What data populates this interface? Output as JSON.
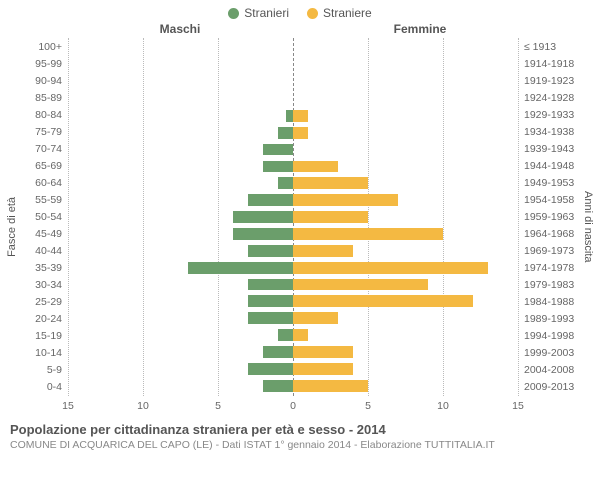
{
  "legend": {
    "male": {
      "label": "Stranieri",
      "color": "#6b9e6b"
    },
    "female": {
      "label": "Straniere",
      "color": "#f4b942"
    }
  },
  "headers": {
    "left": "Maschi",
    "right": "Femmine"
  },
  "axis_labels": {
    "left": "Fasce di età",
    "right": "Anni di nascita"
  },
  "chart": {
    "type": "population-pyramid",
    "xlim": 15,
    "xticks_left": [
      15,
      10,
      5,
      0
    ],
    "xticks_right": [
      0,
      5,
      10,
      15
    ],
    "grid_color": "#bbbbbb",
    "center_color": "#888888",
    "background_color": "#ffffff",
    "rows": [
      {
        "age": "100+",
        "birth": "≤ 1913",
        "m": 0,
        "f": 0
      },
      {
        "age": "95-99",
        "birth": "1914-1918",
        "m": 0,
        "f": 0
      },
      {
        "age": "90-94",
        "birth": "1919-1923",
        "m": 0,
        "f": 0
      },
      {
        "age": "85-89",
        "birth": "1924-1928",
        "m": 0,
        "f": 0
      },
      {
        "age": "80-84",
        "birth": "1929-1933",
        "m": 0.5,
        "f": 1
      },
      {
        "age": "75-79",
        "birth": "1934-1938",
        "m": 1,
        "f": 1
      },
      {
        "age": "70-74",
        "birth": "1939-1943",
        "m": 2,
        "f": 0
      },
      {
        "age": "65-69",
        "birth": "1944-1948",
        "m": 2,
        "f": 3
      },
      {
        "age": "60-64",
        "birth": "1949-1953",
        "m": 1,
        "f": 5
      },
      {
        "age": "55-59",
        "birth": "1954-1958",
        "m": 3,
        "f": 7
      },
      {
        "age": "50-54",
        "birth": "1959-1963",
        "m": 4,
        "f": 5
      },
      {
        "age": "45-49",
        "birth": "1964-1968",
        "m": 4,
        "f": 10
      },
      {
        "age": "40-44",
        "birth": "1969-1973",
        "m": 3,
        "f": 4
      },
      {
        "age": "35-39",
        "birth": "1974-1978",
        "m": 7,
        "f": 13
      },
      {
        "age": "30-34",
        "birth": "1979-1983",
        "m": 3,
        "f": 9
      },
      {
        "age": "25-29",
        "birth": "1984-1988",
        "m": 3,
        "f": 12
      },
      {
        "age": "20-24",
        "birth": "1989-1993",
        "m": 3,
        "f": 3
      },
      {
        "age": "15-19",
        "birth": "1994-1998",
        "m": 1,
        "f": 1
      },
      {
        "age": "10-14",
        "birth": "1999-2003",
        "m": 2,
        "f": 4
      },
      {
        "age": "5-9",
        "birth": "2004-2008",
        "m": 3,
        "f": 4
      },
      {
        "age": "0-4",
        "birth": "2009-2013",
        "m": 2,
        "f": 5
      }
    ]
  },
  "footer": {
    "title": "Popolazione per cittadinanza straniera per età e sesso - 2014",
    "subtitle": "COMUNE DI ACQUARICA DEL CAPO (LE) - Dati ISTAT 1° gennaio 2014 - Elaborazione TUTTITALIA.IT"
  }
}
